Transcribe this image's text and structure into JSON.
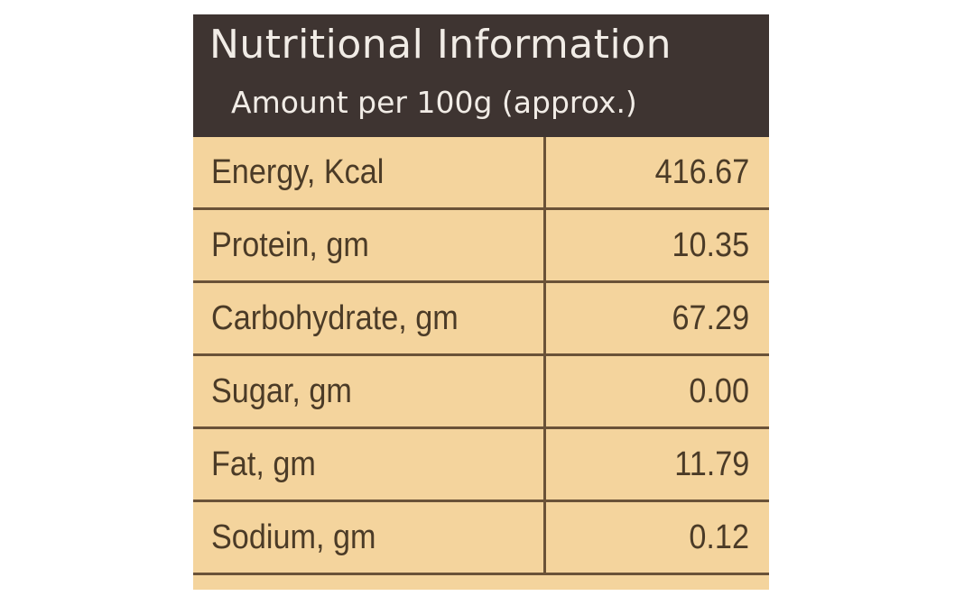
{
  "header": {
    "title": "Nutritional Information",
    "subtitle": "Amount per 100g (approx.)"
  },
  "table": {
    "rows": [
      [
        "Energy, Kcal",
        "416.67"
      ],
      [
        "Protein, gm",
        "10.35"
      ],
      [
        "Carbohydrate, gm",
        "67.29"
      ],
      [
        "Sugar, gm",
        "0.00"
      ],
      [
        "Fat, gm",
        "11.79"
      ],
      [
        "Sodium, gm",
        "0.12"
      ]
    ]
  }
}
